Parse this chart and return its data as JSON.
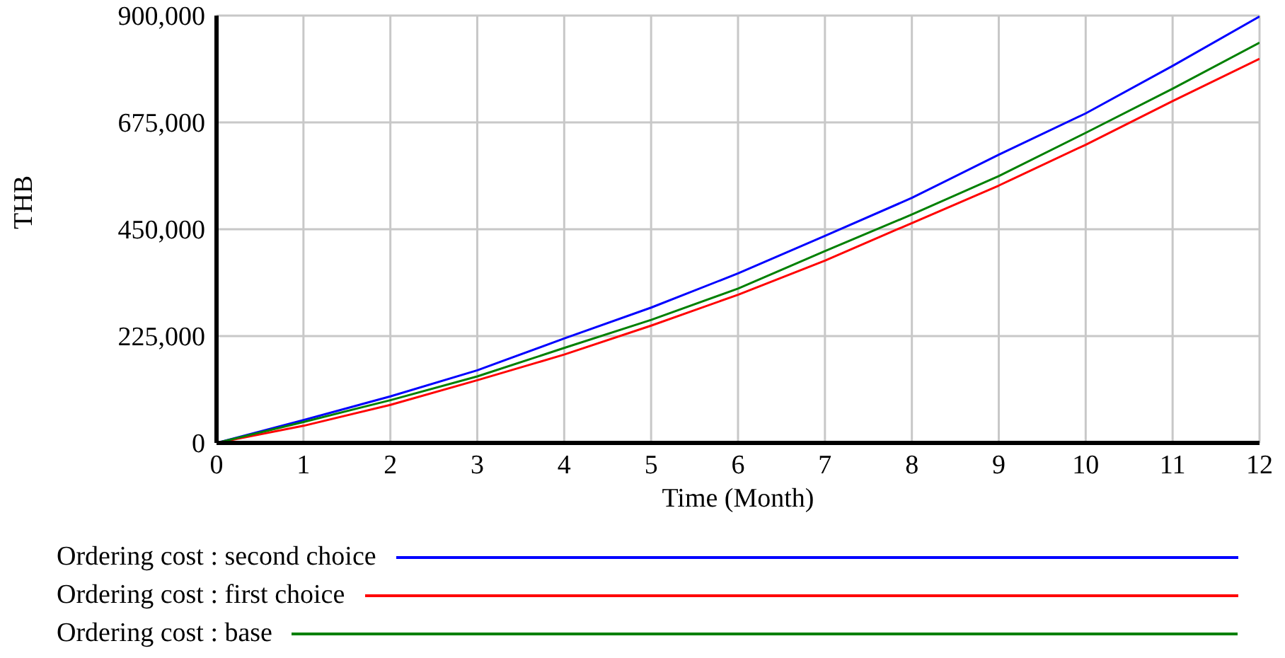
{
  "chart_data": {
    "type": "line",
    "xlabel": "Time (Month)",
    "ylabel": "THB",
    "x": [
      0,
      1,
      2,
      3,
      4,
      5,
      6,
      7,
      8,
      9,
      10,
      11,
      12
    ],
    "series": [
      {
        "name": "Ordering cost : second choice",
        "color": "#0000ff",
        "values": [
          0,
          48000,
          98000,
          153000,
          220000,
          285000,
          357000,
          436000,
          516000,
          607000,
          694000,
          794000,
          898000
        ]
      },
      {
        "name": "Ordering cost : first choice",
        "color": "#ff0000",
        "values": [
          0,
          36000,
          80000,
          132000,
          186000,
          247000,
          312000,
          384000,
          463000,
          542000,
          628000,
          720000,
          809000
        ]
      },
      {
        "name": "Ordering cost : base",
        "color": "#008000",
        "values": [
          0,
          44000,
          90000,
          140000,
          200000,
          259000,
          325000,
          404000,
          481000,
          562000,
          653000,
          746000,
          843000
        ]
      }
    ],
    "xlim": [
      0,
      12
    ],
    "xticks": [
      0,
      1,
      2,
      3,
      4,
      5,
      6,
      7,
      8,
      9,
      10,
      11,
      12
    ],
    "ylim": [
      0,
      900000
    ],
    "yticks": [
      0,
      {
        "value": 225000,
        "label": "225,000"
      },
      {
        "value": 450000,
        "label": "450,000"
      },
      {
        "value": 675000,
        "label": "675,000"
      },
      {
        "value": 900000,
        "label": "900,000"
      }
    ],
    "grid": true,
    "legend": "bottom",
    "marker": "none",
    "line_style": "solid"
  }
}
